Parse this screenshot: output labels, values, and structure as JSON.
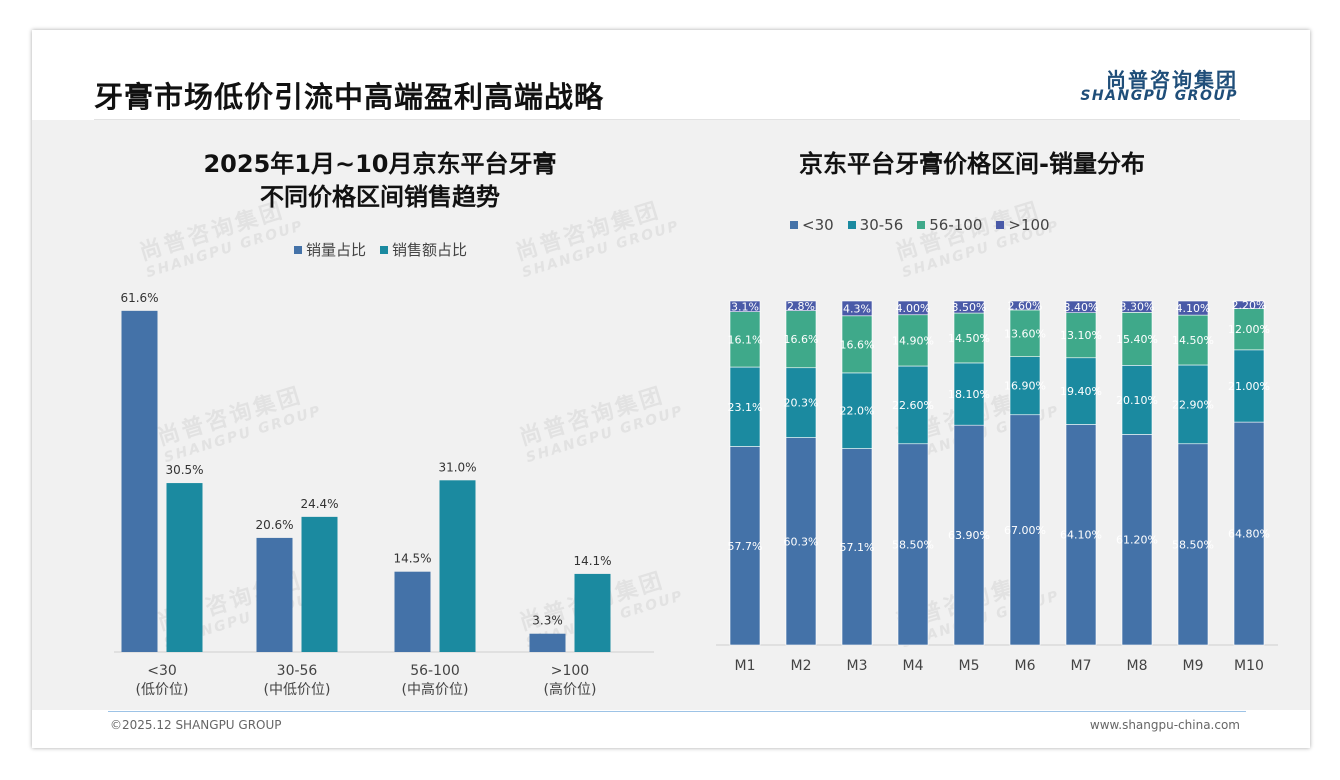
{
  "header": {
    "title": "牙膏市场低价引流中高端盈利高端战略",
    "logo_cn": "尚普咨询集团",
    "logo_en": "SHANGPU GROUP"
  },
  "footer": {
    "left": "©2025.12 SHANGPU GROUP",
    "right": "www.shangpu-china.com"
  },
  "watermark": {
    "cn": "尚普咨询集团",
    "en": "SHANGPU GROUP"
  },
  "colors": {
    "blue": "#4472a8",
    "teal": "#1b8aa0",
    "green": "#3fa98a",
    "purple": "#4a5aa8"
  },
  "chart_data": [
    {
      "type": "bar",
      "title_line1": "2025年1月~10月京东平台牙膏",
      "title_line2": "不同价格区间销售趋势",
      "legend_position": "top-center",
      "categories": [
        "<30",
        "30-56",
        "56-100",
        ">100"
      ],
      "sublabels": [
        "(低价位)",
        "(中低价位)",
        "(中高价位)",
        "(高价位)"
      ],
      "series": [
        {
          "name": "销量占比",
          "values": [
            61.6,
            20.6,
            14.5,
            3.3
          ],
          "labels": [
            "61.6%",
            "20.6%",
            "14.5%",
            "3.3%"
          ]
        },
        {
          "name": "销售额占比",
          "values": [
            30.5,
            24.4,
            31.0,
            14.1
          ],
          "labels": [
            "30.5%",
            "24.4%",
            "31.0%",
            "14.1%"
          ]
        }
      ],
      "ylim": [
        0,
        65
      ],
      "grid": false
    },
    {
      "type": "bar",
      "stacked": true,
      "title": "京东平台牙膏价格区间-销量分布",
      "legend_position": "top-center",
      "categories": [
        "M1",
        "M2",
        "M3",
        "M4",
        "M5",
        "M6",
        "M7",
        "M8",
        "M9",
        "M10"
      ],
      "series": [
        {
          "name": "<30",
          "values": [
            57.7,
            60.3,
            57.1,
            58.5,
            63.9,
            67.0,
            64.1,
            61.2,
            58.5,
            64.8
          ],
          "labels": [
            "57.7%",
            "60.3%",
            "57.1%",
            "58.50%",
            "63.90%",
            "67.00%",
            "64.10%",
            "61.20%",
            "58.50%",
            "64.80%"
          ]
        },
        {
          "name": "30-56",
          "values": [
            23.1,
            20.3,
            22.0,
            22.6,
            18.1,
            16.9,
            19.4,
            20.1,
            22.9,
            21.0
          ],
          "labels": [
            "23.1%",
            "20.3%",
            "22.0%",
            "22.60%",
            "18.10%",
            "16.90%",
            "19.40%",
            "20.10%",
            "22.90%",
            "21.00%"
          ]
        },
        {
          "name": "56-100",
          "values": [
            16.1,
            16.6,
            16.6,
            14.9,
            14.5,
            13.6,
            13.1,
            15.4,
            14.5,
            12.0
          ],
          "labels": [
            "16.1%",
            "16.6%",
            "16.6%",
            "14.90%",
            "14.50%",
            "13.60%",
            "13.10%",
            "15.40%",
            "14.50%",
            "12.00%"
          ]
        },
        {
          "name": ">100",
          "values": [
            3.1,
            2.8,
            4.3,
            4.0,
            3.5,
            2.6,
            3.4,
            3.3,
            4.1,
            2.2
          ],
          "labels": [
            "3.1%",
            "2.8%",
            "4.3%",
            "4.00%",
            "3.50%",
            "2.60%",
            "3.40%",
            "3.30%",
            "4.10%",
            "2.20%"
          ]
        }
      ],
      "ylim": [
        0,
        100
      ],
      "grid": false
    }
  ]
}
